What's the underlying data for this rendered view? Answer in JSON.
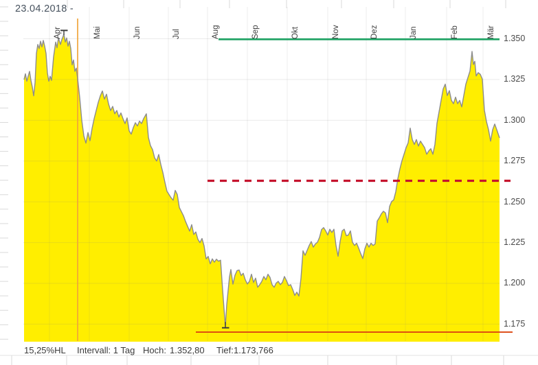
{
  "page": {
    "date_label": "23.04.2018 -"
  },
  "chart_data": {
    "type": "area",
    "title": "",
    "x_tick_labels": [
      "Apr",
      "Mai",
      "Jun",
      "Jul",
      "Aug",
      "Sep",
      "Okt",
      "Nov",
      "Dez",
      "Jan",
      "Feb",
      "Mär"
    ],
    "y_tick_labels": [
      "1.350",
      "1.325",
      "1.300",
      "1.275",
      "1.250",
      "1.225",
      "1.200",
      "1.175"
    ],
    "y_axis_range": [
      1.175,
      1.35
    ],
    "grid": true,
    "legend": "none",
    "colors": {
      "area": "#ffee00",
      "line": "#8c8c8c"
    },
    "series": [
      {
        "name": "price",
        "points": [
          [
            35,
            1.325
          ],
          [
            37,
            1.3285
          ],
          [
            39,
            1.324
          ],
          [
            41,
            1.327
          ],
          [
            43,
            1.33
          ],
          [
            45,
            1.3245
          ],
          [
            47,
            1.3205
          ],
          [
            49,
            1.315
          ],
          [
            51,
            1.323
          ],
          [
            53,
            1.341
          ],
          [
            55,
            1.3465
          ],
          [
            57,
            1.344
          ],
          [
            59,
            1.3485
          ],
          [
            61,
            1.345
          ],
          [
            63,
            1.349
          ],
          [
            65,
            1.3455
          ],
          [
            67,
            1.341
          ],
          [
            69,
            1.329
          ],
          [
            71,
            1.324
          ],
          [
            73,
            1.327
          ],
          [
            75,
            1.3245
          ],
          [
            78,
            1.339
          ],
          [
            81,
            1.348
          ],
          [
            83,
            1.3445
          ],
          [
            85,
            1.3505
          ],
          [
            88,
            1.3465
          ],
          [
            90,
            1.3495
          ],
          [
            93,
            1.3528
          ],
          [
            95,
            1.348
          ],
          [
            97,
            1.3505
          ],
          [
            99,
            1.3455
          ],
          [
            101,
            1.3485
          ],
          [
            103,
            1.344
          ],
          [
            105,
            1.334
          ],
          [
            107,
            1.337
          ],
          [
            109,
            1.33
          ],
          [
            111,
            1.332
          ],
          [
            113,
            1.3255
          ],
          [
            116,
            1.314
          ],
          [
            119,
            1.3
          ],
          [
            122,
            1.2905
          ],
          [
            125,
            1.286
          ],
          [
            128,
            1.2925
          ],
          [
            131,
            1.2875
          ],
          [
            134,
            1.295
          ],
          [
            137,
            1.301
          ],
          [
            140,
            1.306
          ],
          [
            143,
            1.311
          ],
          [
            146,
            1.315
          ],
          [
            149,
            1.318
          ],
          [
            152,
            1.313
          ],
          [
            155,
            1.316
          ],
          [
            158,
            1.31
          ],
          [
            161,
            1.306
          ],
          [
            164,
            1.3085
          ],
          [
            167,
            1.304
          ],
          [
            170,
            1.306
          ],
          [
            173,
            1.302
          ],
          [
            176,
            1.3045
          ],
          [
            179,
            1.301
          ],
          [
            182,
            1.298
          ],
          [
            185,
            1.3015
          ],
          [
            188,
            1.2935
          ],
          [
            191,
            1.2915
          ],
          [
            194,
            1.2955
          ],
          [
            197,
            1.2985
          ],
          [
            200,
            1.2965
          ],
          [
            203,
            1.2995
          ],
          [
            206,
            1.298
          ],
          [
            209,
            1.301
          ],
          [
            213,
            1.304
          ],
          [
            216,
            1.2895
          ],
          [
            219,
            1.2845
          ],
          [
            222,
            1.282
          ],
          [
            225,
            1.277
          ],
          [
            228,
            1.275
          ],
          [
            231,
            1.279
          ],
          [
            234,
            1.273
          ],
          [
            237,
            1.268
          ],
          [
            240,
            1.262
          ],
          [
            243,
            1.2565
          ],
          [
            246,
            1.2545
          ],
          [
            249,
            1.2525
          ],
          [
            252,
            1.251
          ],
          [
            255,
            1.257
          ],
          [
            258,
            1.2545
          ],
          [
            261,
            1.2465
          ],
          [
            264,
            1.244
          ],
          [
            267,
            1.2415
          ],
          [
            270,
            1.238
          ],
          [
            273,
            1.235
          ],
          [
            276,
            1.232
          ],
          [
            279,
            1.236
          ],
          [
            282,
            1.23
          ],
          [
            285,
            1.2315
          ],
          [
            288,
            1.227
          ],
          [
            291,
            1.225
          ],
          [
            294,
            1.2275
          ],
          [
            297,
            1.223
          ],
          [
            300,
            1.215
          ],
          [
            303,
            1.2165
          ],
          [
            306,
            1.212
          ],
          [
            309,
            1.215
          ],
          [
            312,
            1.213
          ],
          [
            315,
            1.2148
          ],
          [
            318,
            1.2136
          ],
          [
            321,
            1.2142
          ],
          [
            324,
            1.196
          ],
          [
            326,
            1.1845
          ],
          [
            328,
            1.1738
          ],
          [
            330,
            1.187
          ],
          [
            332,
            1.1955
          ],
          [
            334,
            1.204
          ],
          [
            336,
            1.2085
          ],
          [
            339,
            1.1995
          ],
          [
            342,
            1.205
          ],
          [
            345,
            1.2078
          ],
          [
            348,
            1.2082
          ],
          [
            351,
            1.2048
          ],
          [
            354,
            1.2062
          ],
          [
            357,
            1.2022
          ],
          [
            360,
            1.1996
          ],
          [
            363,
            1.2012
          ],
          [
            366,
            1.2056
          ],
          [
            369,
            1.2006
          ],
          [
            372,
            1.2032
          ],
          [
            375,
            1.1976
          ],
          [
            378,
            1.1992
          ],
          [
            381,
            1.2012
          ],
          [
            384,
            1.2042
          ],
          [
            387,
            1.2022
          ],
          [
            390,
            1.2056
          ],
          [
            393,
            1.2036
          ],
          [
            396,
            1.1992
          ],
          [
            399,
            1.1976
          ],
          [
            402,
            1.2002
          ],
          [
            405,
            1.2012
          ],
          [
            408,
            1.1992
          ],
          [
            411,
            1.2006
          ],
          [
            414,
            1.2042
          ],
          [
            417,
            1.2016
          ],
          [
            420,
            1.1986
          ],
          [
            423,
            1.1992
          ],
          [
            426,
            1.1962
          ],
          [
            429,
            1.1926
          ],
          [
            432,
            1.1946
          ],
          [
            435,
            1.1922
          ],
          [
            438,
            1.203
          ],
          [
            441,
            1.22
          ],
          [
            444,
            1.2172
          ],
          [
            447,
            1.2202
          ],
          [
            450,
            1.2232
          ],
          [
            453,
            1.2256
          ],
          [
            456,
            1.2222
          ],
          [
            459,
            1.2242
          ],
          [
            462,
            1.2252
          ],
          [
            465,
            1.2282
          ],
          [
            468,
            1.233
          ],
          [
            471,
            1.2342
          ],
          [
            474,
            1.2322
          ],
          [
            477,
            1.2296
          ],
          [
            480,
            1.2332
          ],
          [
            483,
            1.2312
          ],
          [
            486,
            1.2332
          ],
          [
            489,
            1.2232
          ],
          [
            492,
            1.2166
          ],
          [
            495,
            1.2256
          ],
          [
            498,
            1.2322
          ],
          [
            501,
            1.2332
          ],
          [
            504,
            1.2292
          ],
          [
            507,
            1.2296
          ],
          [
            510,
            1.2322
          ],
          [
            513,
            1.2252
          ],
          [
            516,
            1.2232
          ],
          [
            519,
            1.2246
          ],
          [
            522,
            1.2216
          ],
          [
            525,
            1.2182
          ],
          [
            528,
            1.2152
          ],
          [
            531,
            1.2212
          ],
          [
            534,
            1.2246
          ],
          [
            537,
            1.2222
          ],
          [
            540,
            1.2246
          ],
          [
            543,
            1.2232
          ],
          [
            546,
            1.2242
          ],
          [
            549,
            1.2382
          ],
          [
            552,
            1.2402
          ],
          [
            555,
            1.2426
          ],
          [
            558,
            1.2442
          ],
          [
            561,
            1.2432
          ],
          [
            564,
            1.2372
          ],
          [
            567,
            1.2472
          ],
          [
            570,
            1.2502
          ],
          [
            573,
            1.2512
          ],
          [
            576,
            1.2562
          ],
          [
            579,
            1.2642
          ],
          [
            582,
            1.2702
          ],
          [
            585,
            1.2752
          ],
          [
            588,
            1.2792
          ],
          [
            591,
            1.2832
          ],
          [
            594,
            1.2862
          ],
          [
            597,
            1.2952
          ],
          [
            600,
            1.2882
          ],
          [
            603,
            1.2852
          ],
          [
            606,
            1.2882
          ],
          [
            609,
            1.2842
          ],
          [
            612,
            1.2872
          ],
          [
            615,
            1.2852
          ],
          [
            618,
            1.2832
          ],
          [
            621,
            1.2792
          ],
          [
            624,
            1.2812
          ],
          [
            627,
            1.2826
          ],
          [
            630,
            1.2792
          ],
          [
            633,
            1.2852
          ],
          [
            636,
            1.2982
          ],
          [
            639,
            1.3052
          ],
          [
            642,
            1.3122
          ],
          [
            645,
            1.3192
          ],
          [
            648,
            1.3222
          ],
          [
            651,
            1.3152
          ],
          [
            654,
            1.3182
          ],
          [
            657,
            1.3122
          ],
          [
            660,
            1.3102
          ],
          [
            663,
            1.3142
          ],
          [
            666,
            1.3102
          ],
          [
            669,
            1.3122
          ],
          [
            672,
            1.3082
          ],
          [
            675,
            1.3152
          ],
          [
            678,
            1.3222
          ],
          [
            681,
            1.3262
          ],
          [
            684,
            1.3302
          ],
          [
            687,
            1.3422
          ],
          [
            689,
            1.3342
          ],
          [
            691,
            1.3362
          ],
          [
            693,
            1.3272
          ],
          [
            696,
            1.3292
          ],
          [
            699,
            1.3282
          ],
          [
            702,
            1.3252
          ],
          [
            705,
            1.3062
          ],
          [
            708,
            1.2992
          ],
          [
            711,
            1.2942
          ],
          [
            714,
            1.2872
          ],
          [
            717,
            1.2942
          ],
          [
            720,
            1.2977
          ],
          [
            723,
            1.2942
          ],
          [
            727,
            1.2892
          ]
        ]
      }
    ],
    "overlays": [
      {
        "name": "resistance-line-1350",
        "style": "solid",
        "color": "#1fa263",
        "width": 2.8,
        "value": 1.3497,
        "x_from": 318,
        "x_to": 727
      },
      {
        "name": "dashed-level-1263",
        "style": "dashed",
        "color": "#c5132d",
        "width": 3.2,
        "value": 1.2629,
        "x_from": 302,
        "x_to": 743
      },
      {
        "name": "support-line-1170",
        "style": "solid",
        "color": "#dc450f",
        "width": 1.8,
        "value": 1.1701,
        "x_from": 285,
        "x_to": 746
      },
      {
        "name": "vertical-event-line",
        "style": "vline",
        "color": "#f0a53a",
        "width": 1.7,
        "x": 113,
        "y_from": 27,
        "y_to": 497
      }
    ],
    "markers": [
      {
        "name": "high-marker",
        "x": 93,
        "value": 1.3528
      },
      {
        "name": "low-marker",
        "x": 328,
        "value": 1.1738
      }
    ]
  },
  "footer": {
    "items": [
      "15,25%HL",
      "Intervall: 1 Tag",
      "Hoch:",
      "1.352,80",
      "Tief:",
      "1.173,766"
    ]
  }
}
